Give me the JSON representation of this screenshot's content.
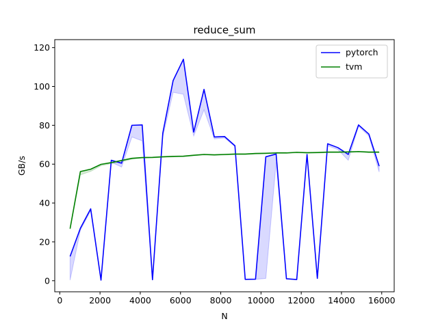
{
  "chart_data": {
    "type": "line",
    "title": "reduce_sum",
    "xlabel": "N",
    "ylabel": "GB/s",
    "xlim": [
      -250,
      16620
    ],
    "ylim": [
      -5.7,
      124.1
    ],
    "xticks": [
      0,
      2000,
      4000,
      6000,
      8000,
      10000,
      12000,
      14000,
      16000
    ],
    "yticks": [
      0,
      20,
      40,
      60,
      80,
      100,
      120
    ],
    "legend_position": "top-right",
    "grid": false,
    "series": [
      {
        "name": "pytorch",
        "color": "#0000ff",
        "band_color": "#0000ff",
        "x": [
          512,
          1024,
          1536,
          2048,
          2560,
          3072,
          3584,
          4096,
          4608,
          5120,
          5632,
          6144,
          6656,
          7168,
          7680,
          8192,
          8704,
          9216,
          9728,
          10240,
          10752,
          11264,
          11776,
          12288,
          12800,
          13312,
          13824,
          14336,
          14848,
          15360,
          15872
        ],
        "values": [
          12.5,
          27,
          37,
          0.3,
          62,
          60.5,
          80,
          80.2,
          0.5,
          76,
          103,
          114,
          76.5,
          98.5,
          74,
          74.2,
          69.5,
          0.7,
          0.8,
          63.8,
          65.2,
          1,
          0.6,
          65,
          1.2,
          70.5,
          68.5,
          65,
          80.2,
          75.5,
          59
        ],
        "lower": [
          0.3,
          26,
          36,
          0.2,
          61,
          58.5,
          74,
          72,
          0.4,
          74,
          97,
          96,
          74.5,
          88,
          73,
          73.5,
          69,
          0.6,
          0.7,
          1.2,
          61,
          0.9,
          0.5,
          64.5,
          1.1,
          69.5,
          67.5,
          62,
          79.5,
          74.5,
          56
        ]
      },
      {
        "name": "tvm",
        "color": "#008000",
        "band_color": "#008000",
        "x": [
          512,
          1024,
          1536,
          2048,
          2560,
          3072,
          3584,
          4096,
          4608,
          5120,
          5632,
          6144,
          6656,
          7168,
          7680,
          8192,
          8704,
          9216,
          9728,
          10240,
          10752,
          11264,
          11776,
          12288,
          12800,
          13312,
          13824,
          14336,
          14848,
          15360,
          15872
        ],
        "values": [
          26.8,
          56.2,
          57.4,
          59.9,
          60.8,
          61.9,
          63,
          63.4,
          63.5,
          63.8,
          64,
          64.1,
          64.6,
          65,
          64.8,
          65,
          65.2,
          65.2,
          65.5,
          65.6,
          65.8,
          65.8,
          66.1,
          65.9,
          66,
          66.2,
          66.2,
          66.3,
          66.5,
          66.2,
          66.2
        ],
        "lower": [
          26.5,
          54.5,
          56.3,
          59.2,
          60.3,
          61.2,
          62.6,
          63.1,
          63.2,
          63.5,
          63.7,
          63.8,
          64.3,
          64.7,
          64.5,
          64.7,
          64.9,
          64.9,
          65.2,
          65.3,
          65.5,
          65.5,
          65.8,
          65.6,
          65.7,
          65.9,
          65.9,
          66,
          66.2,
          65.9,
          65.9
        ]
      }
    ]
  }
}
